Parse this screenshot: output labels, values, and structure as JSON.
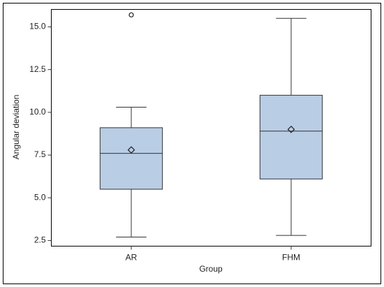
{
  "chart_data": {
    "type": "box",
    "xlabel": "Group",
    "ylabel": "Angular deviation",
    "categories": [
      "AR",
      "FHM"
    ],
    "boxes": [
      {
        "whislo": 2.7,
        "q1": 5.5,
        "med": 7.6,
        "q3": 9.1,
        "whishi": 10.3,
        "mean": 7.8,
        "fliers": [
          15.7
        ]
      },
      {
        "whislo": 2.8,
        "q1": 6.1,
        "med": 8.9,
        "q3": 11.0,
        "whishi": 15.5,
        "mean": 9.0,
        "fliers": []
      }
    ],
    "color": "#b9cde5",
    "ylim": [
      2.17,
      16.02
    ],
    "yticks": [
      2.5,
      {
        "value": 5,
        "label": "5.0"
      },
      7.5,
      {
        "value": 10,
        "label": "10.0"
      },
      12.5,
      {
        "value": 15,
        "label": "15.0"
      }
    ]
  }
}
